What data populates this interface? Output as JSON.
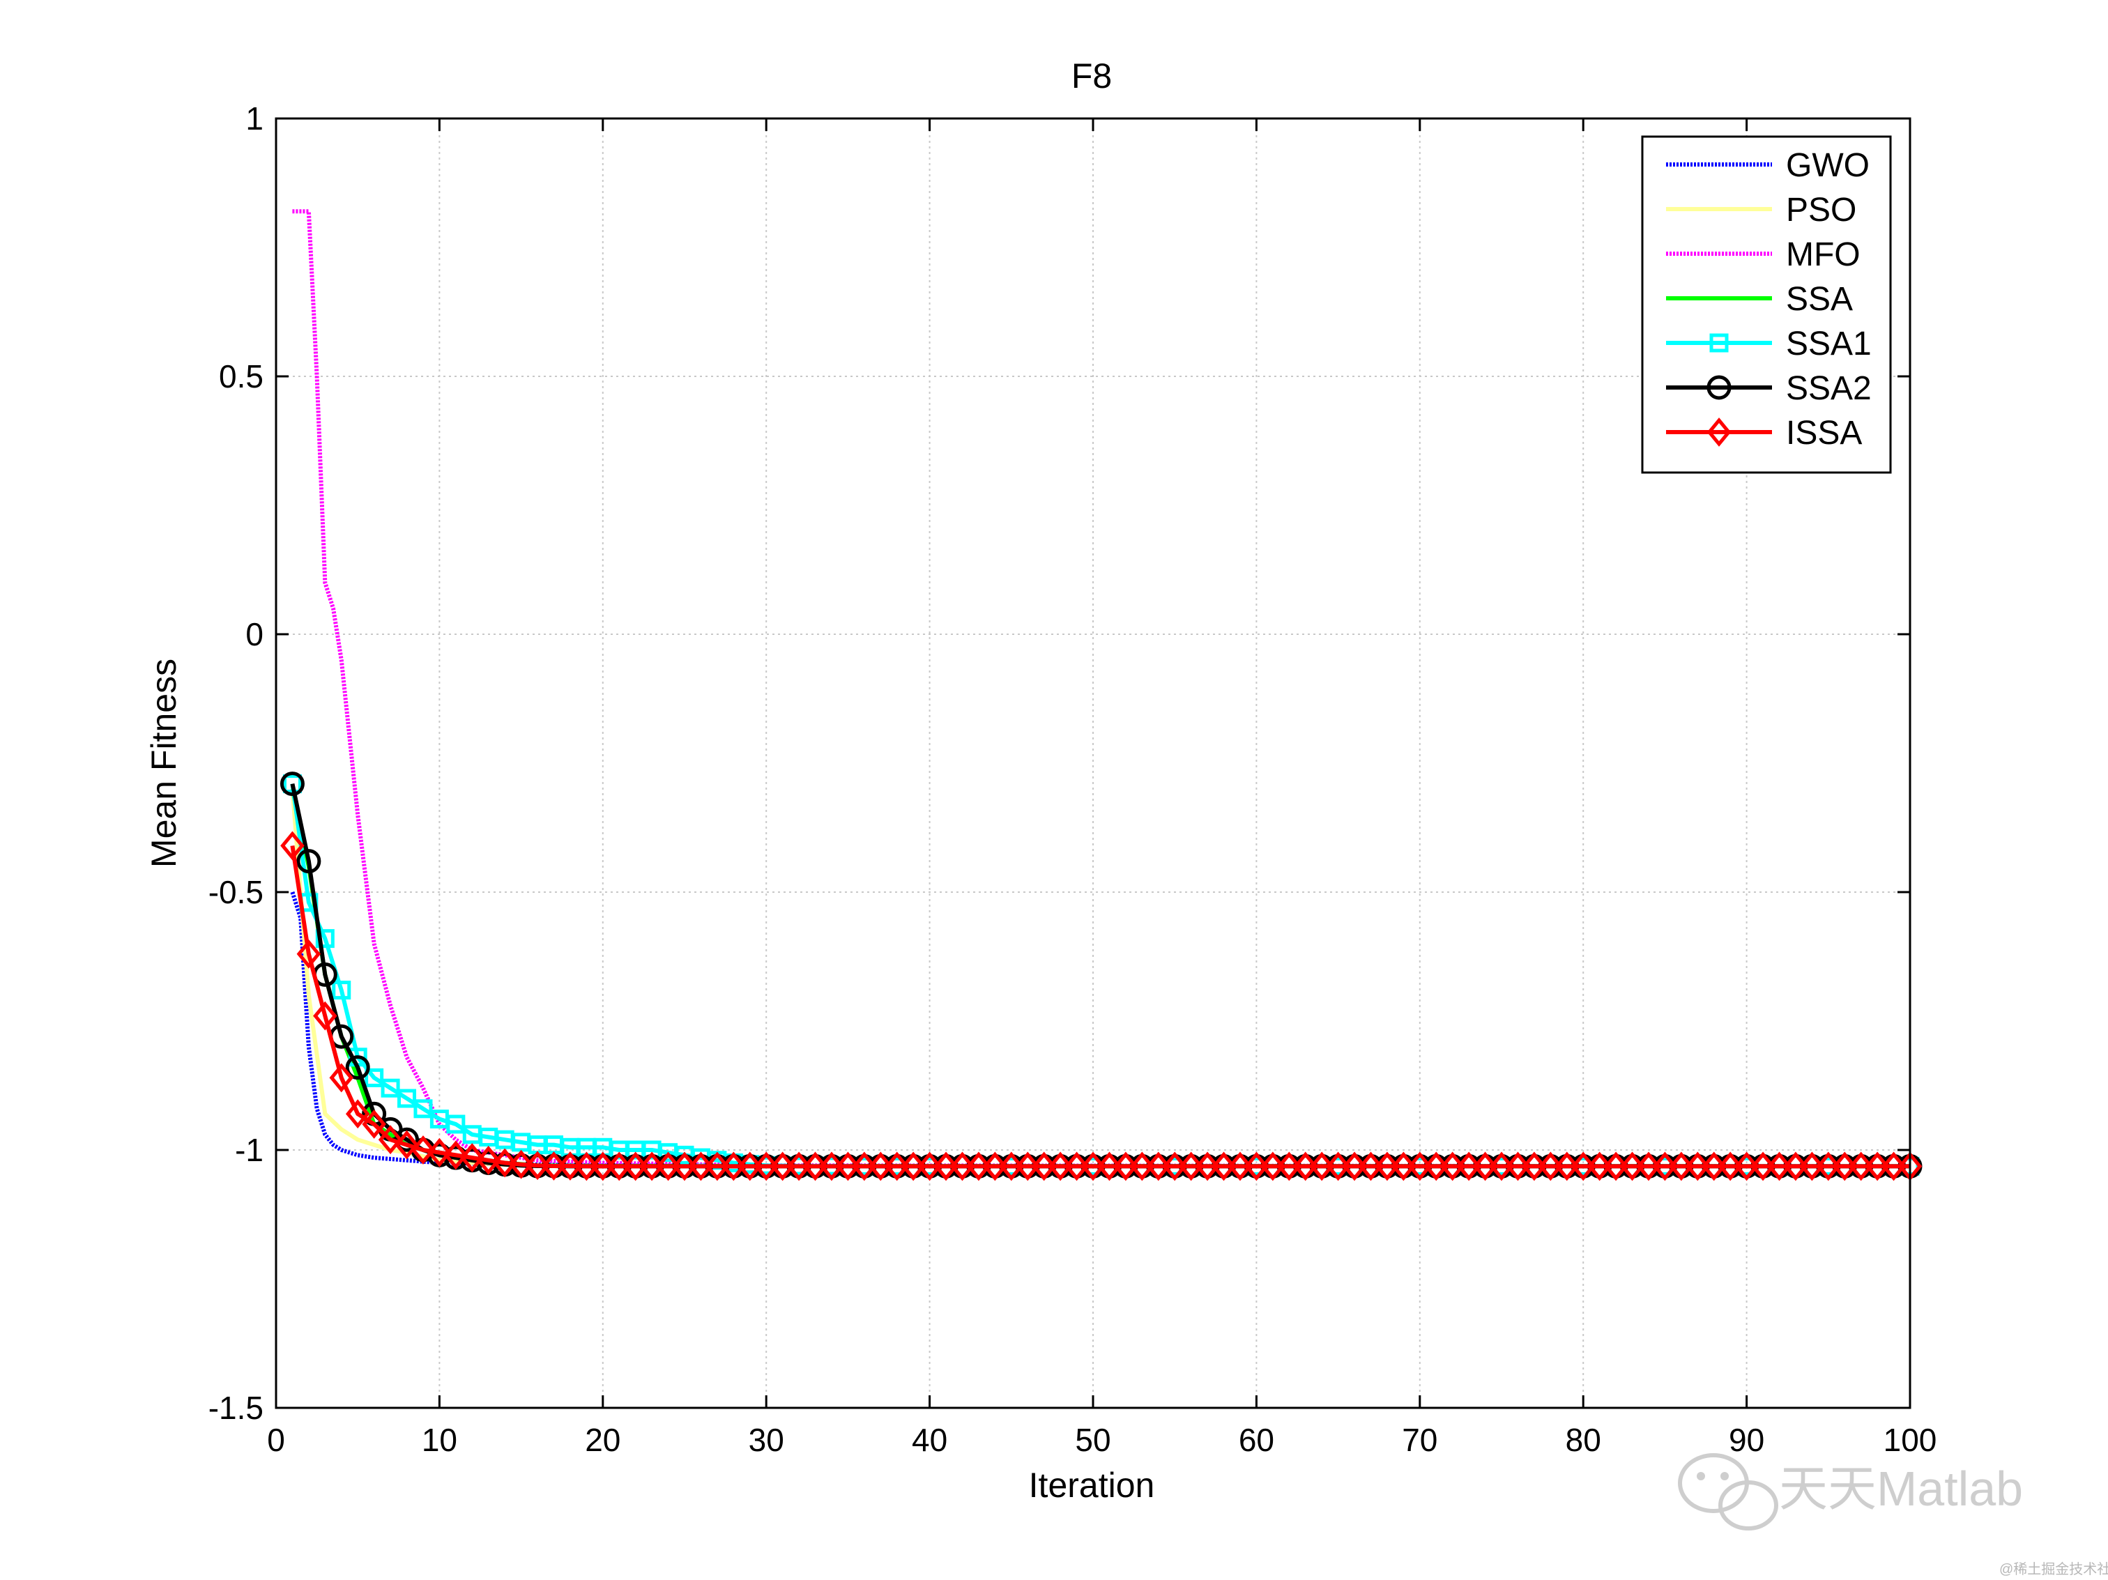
{
  "chart_data": {
    "type": "line",
    "title": "F8",
    "xlabel": "Iteration",
    "ylabel": "Mean Fitness",
    "xlim": [
      0,
      100
    ],
    "ylim": [
      -1.5,
      1
    ],
    "xticks": [
      0,
      10,
      20,
      30,
      40,
      50,
      60,
      70,
      80,
      90,
      100
    ],
    "yticks": [
      -1.5,
      -1,
      -0.5,
      0,
      0.5,
      1
    ],
    "xtick_labels": [
      "0",
      "10",
      "20",
      "30",
      "40",
      "50",
      "60",
      "70",
      "80",
      "90",
      "100"
    ],
    "ytick_labels": [
      "-1.5",
      "-1",
      "-0.5",
      "0",
      "0.5",
      "1"
    ],
    "grid": true,
    "legend_position": "top-right",
    "series": [
      {
        "name": "GWO",
        "color": "#0000ff",
        "style": "dotted",
        "marker": "none",
        "x": [
          1,
          1.5,
          2,
          2.5,
          3,
          3.5,
          4,
          5,
          6,
          8,
          10,
          15,
          20,
          30,
          100
        ],
        "y": [
          -0.5,
          -0.55,
          -0.8,
          -0.92,
          -0.97,
          -0.99,
          -1.0,
          -1.01,
          -1.015,
          -1.02,
          -1.025,
          -1.028,
          -1.03,
          -1.031,
          -1.0316
        ]
      },
      {
        "name": "PSO",
        "color": "#ffff99",
        "style": "solid",
        "marker": "none",
        "x": [
          1,
          2,
          3,
          4,
          5,
          6,
          7,
          8,
          10,
          12,
          15,
          20,
          100
        ],
        "y": [
          -0.3,
          -0.7,
          -0.93,
          -0.96,
          -0.98,
          -0.99,
          -1.0,
          -1.005,
          -1.02,
          -1.025,
          -1.03,
          -1.031,
          -1.0316
        ]
      },
      {
        "name": "MFO",
        "color": "#ff00ff",
        "style": "dotted",
        "marker": "none",
        "x": [
          1,
          2,
          2.5,
          3,
          3.5,
          4,
          4.5,
          5,
          6,
          7,
          8,
          9,
          10,
          11,
          12,
          14,
          16,
          20,
          30,
          100
        ],
        "y": [
          0.82,
          0.82,
          0.5,
          0.1,
          0.05,
          -0.05,
          -0.2,
          -0.35,
          -0.6,
          -0.72,
          -0.82,
          -0.88,
          -0.95,
          -0.98,
          -1.0,
          -1.01,
          -1.02,
          -1.025,
          -1.03,
          -1.0316
        ]
      },
      {
        "name": "SSA",
        "color": "#00ff00",
        "style": "solid",
        "marker": "none",
        "x": [
          1,
          2,
          3,
          4,
          5,
          6,
          7,
          8,
          9,
          10,
          12,
          14,
          16,
          20,
          100
        ],
        "y": [
          -0.3,
          -0.45,
          -0.66,
          -0.78,
          -0.86,
          -0.95,
          -0.97,
          -0.99,
          -1.0,
          -1.01,
          -1.02,
          -1.025,
          -1.03,
          -1.031,
          -1.0316
        ]
      },
      {
        "name": "SSA1",
        "color": "#00ffff",
        "style": "solid",
        "marker": "square",
        "x": [
          1,
          2,
          3,
          4,
          5,
          6,
          7,
          8,
          9,
          10,
          11,
          12,
          13,
          14,
          15,
          16,
          17,
          18,
          19,
          20,
          21,
          22,
          23,
          24,
          25,
          26,
          27,
          28,
          29,
          30,
          32,
          34,
          36,
          38,
          40,
          45,
          50,
          55,
          60,
          65,
          70,
          75,
          80,
          85,
          90,
          95,
          100
        ],
        "y": [
          -0.29,
          -0.52,
          -0.59,
          -0.69,
          -0.82,
          -0.86,
          -0.88,
          -0.9,
          -0.92,
          -0.94,
          -0.95,
          -0.97,
          -0.975,
          -0.98,
          -0.985,
          -0.99,
          -0.99,
          -0.995,
          -0.995,
          -0.995,
          -1.0,
          -1.0,
          -1.0,
          -1.005,
          -1.01,
          -1.015,
          -1.02,
          -1.025,
          -1.028,
          -1.03,
          -1.031,
          -1.031,
          -1.0316,
          -1.0316,
          -1.0316,
          -1.0316,
          -1.0316,
          -1.0316,
          -1.0316,
          -1.0316,
          -1.0316,
          -1.0316,
          -1.0316,
          -1.0316,
          -1.0316,
          -1.0316,
          -1.0316
        ]
      },
      {
        "name": "SSA2",
        "color": "#000000",
        "style": "solid",
        "marker": "circle",
        "x": [
          1,
          2,
          3,
          4,
          5,
          6,
          7,
          8,
          9,
          10,
          11,
          12,
          13,
          14,
          15,
          16,
          17,
          18,
          19,
          20,
          21,
          22,
          23,
          24,
          25,
          26,
          27,
          28,
          29,
          30,
          31,
          32,
          33,
          34,
          35,
          36,
          37,
          38,
          39,
          40,
          41,
          42,
          43,
          44,
          45,
          46,
          47,
          48,
          49,
          50,
          51,
          52,
          53,
          54,
          55,
          56,
          57,
          58,
          59,
          60,
          61,
          62,
          63,
          64,
          65,
          66,
          67,
          68,
          69,
          70,
          71,
          72,
          73,
          74,
          75,
          76,
          77,
          78,
          79,
          80,
          81,
          82,
          83,
          84,
          85,
          86,
          87,
          88,
          89,
          90,
          91,
          92,
          93,
          94,
          95,
          96,
          97,
          98,
          99,
          100
        ],
        "y": [
          -0.29,
          -0.44,
          -0.66,
          -0.78,
          -0.84,
          -0.93,
          -0.96,
          -0.98,
          -1.0,
          -1.01,
          -1.015,
          -1.02,
          -1.025,
          -1.028,
          -1.03,
          -1.031,
          -1.031,
          -1.0316,
          -1.0316,
          -1.0316,
          -1.0316,
          -1.0316,
          -1.0316,
          -1.0316,
          -1.0316,
          -1.0316,
          -1.0316,
          -1.0316,
          -1.0316,
          -1.0316,
          -1.0316,
          -1.0316,
          -1.0316,
          -1.0316,
          -1.0316,
          -1.0316,
          -1.0316,
          -1.0316,
          -1.0316,
          -1.0316,
          -1.0316,
          -1.0316,
          -1.0316,
          -1.0316,
          -1.0316,
          -1.0316,
          -1.0316,
          -1.0316,
          -1.0316,
          -1.0316,
          -1.0316,
          -1.0316,
          -1.0316,
          -1.0316,
          -1.0316,
          -1.0316,
          -1.0316,
          -1.0316,
          -1.0316,
          -1.0316,
          -1.0316,
          -1.0316,
          -1.0316,
          -1.0316,
          -1.0316,
          -1.0316,
          -1.0316,
          -1.0316,
          -1.0316,
          -1.0316,
          -1.0316,
          -1.0316,
          -1.0316,
          -1.0316,
          -1.0316,
          -1.0316,
          -1.0316,
          -1.0316,
          -1.0316,
          -1.0316,
          -1.0316,
          -1.0316,
          -1.0316,
          -1.0316,
          -1.0316,
          -1.0316,
          -1.0316,
          -1.0316,
          -1.0316,
          -1.0316,
          -1.0316,
          -1.0316,
          -1.0316,
          -1.0316,
          -1.0316,
          -1.0316,
          -1.0316,
          -1.0316,
          -1.0316,
          -1.0316
        ]
      },
      {
        "name": "ISSA",
        "color": "#ff0000",
        "style": "solid",
        "marker": "diamond",
        "x": [
          1,
          2,
          3,
          4,
          5,
          6,
          7,
          8,
          9,
          10,
          11,
          12,
          13,
          14,
          15,
          16,
          17,
          18,
          19,
          20,
          21,
          22,
          23,
          24,
          25,
          26,
          27,
          28,
          29,
          30,
          31,
          32,
          33,
          34,
          35,
          36,
          37,
          38,
          39,
          40,
          41,
          42,
          43,
          44,
          45,
          46,
          47,
          48,
          49,
          50,
          51,
          52,
          53,
          54,
          55,
          56,
          57,
          58,
          59,
          60,
          61,
          62,
          63,
          64,
          65,
          66,
          67,
          68,
          69,
          70,
          71,
          72,
          73,
          74,
          75,
          76,
          77,
          78,
          79,
          80,
          81,
          82,
          83,
          84,
          85,
          86,
          87,
          88,
          89,
          90,
          91,
          92,
          93,
          94,
          95,
          96,
          97,
          98,
          99,
          100
        ],
        "y": [
          -0.41,
          -0.62,
          -0.74,
          -0.86,
          -0.93,
          -0.95,
          -0.98,
          -0.99,
          -1.0,
          -1.005,
          -1.01,
          -1.015,
          -1.02,
          -1.025,
          -1.028,
          -1.03,
          -1.031,
          -1.031,
          -1.0316,
          -1.0316,
          -1.0316,
          -1.0316,
          -1.0316,
          -1.0316,
          -1.0316,
          -1.0316,
          -1.0316,
          -1.0316,
          -1.0316,
          -1.0316,
          -1.0316,
          -1.0316,
          -1.0316,
          -1.0316,
          -1.0316,
          -1.0316,
          -1.0316,
          -1.0316,
          -1.0316,
          -1.0316,
          -1.0316,
          -1.0316,
          -1.0316,
          -1.0316,
          -1.0316,
          -1.0316,
          -1.0316,
          -1.0316,
          -1.0316,
          -1.0316,
          -1.0316,
          -1.0316,
          -1.0316,
          -1.0316,
          -1.0316,
          -1.0316,
          -1.0316,
          -1.0316,
          -1.0316,
          -1.0316,
          -1.0316,
          -1.0316,
          -1.0316,
          -1.0316,
          -1.0316,
          -1.0316,
          -1.0316,
          -1.0316,
          -1.0316,
          -1.0316,
          -1.0316,
          -1.0316,
          -1.0316,
          -1.0316,
          -1.0316,
          -1.0316,
          -1.0316,
          -1.0316,
          -1.0316,
          -1.0316,
          -1.0316,
          -1.0316,
          -1.0316,
          -1.0316,
          -1.0316,
          -1.0316,
          -1.0316,
          -1.0316,
          -1.0316,
          -1.0316,
          -1.0316,
          -1.0316,
          -1.0316,
          -1.0316,
          -1.0316,
          -1.0316,
          -1.0316,
          -1.0316,
          -1.0316,
          -1.0316
        ]
      }
    ]
  },
  "watermark": {
    "text": "天天Matlab",
    "subtext": "@稀土掘金技术社区",
    "icon": "wechat-icon"
  }
}
